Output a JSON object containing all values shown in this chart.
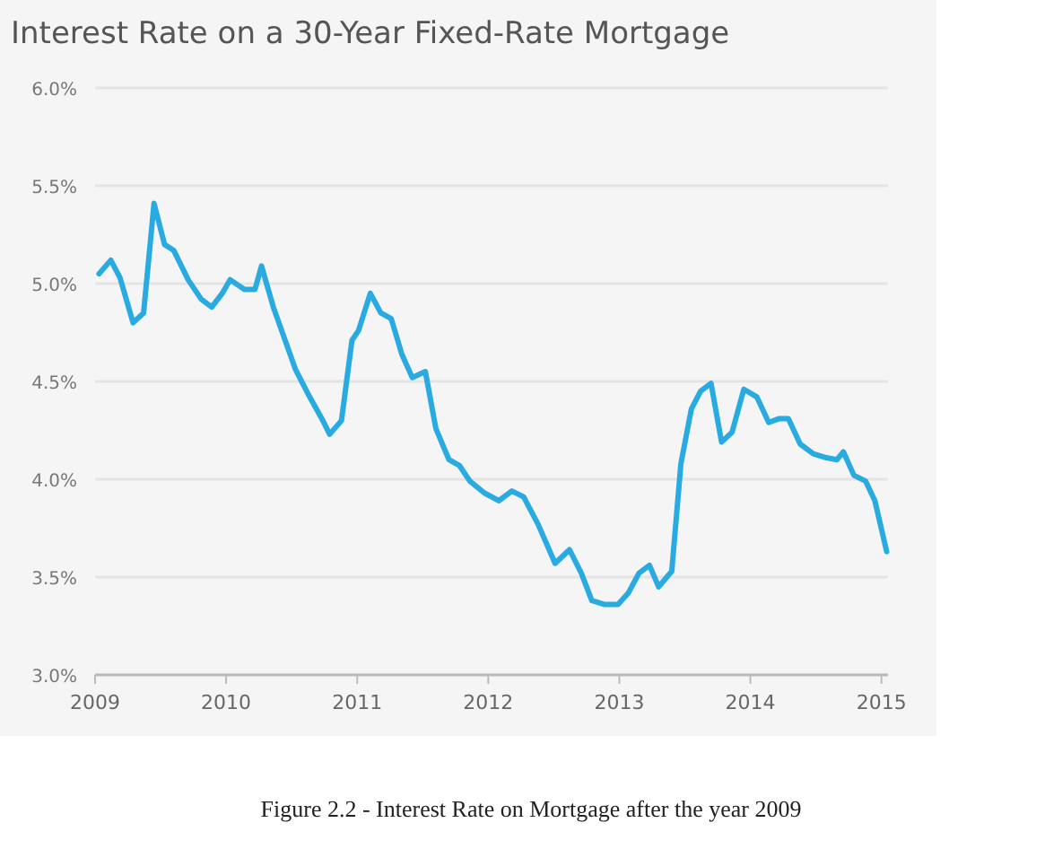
{
  "chart_data": {
    "type": "line",
    "title": "Interest Rate on a 30-Year Fixed-Rate Mortgage",
    "annotations": [
      "Figure 2.2 - Interest Rate on Mortgage after the year 2009"
    ],
    "x": [
      2009.03,
      2009.12,
      2009.19,
      2009.29,
      2009.37,
      2009.45,
      2009.53,
      2009.6,
      2009.71,
      2009.81,
      2009.89,
      2009.97,
      2010.03,
      2010.14,
      2010.22,
      2010.27,
      2010.36,
      2010.53,
      2010.63,
      2010.73,
      2010.79,
      2010.88,
      2010.96,
      2011.01,
      2011.1,
      2011.18,
      2011.26,
      2011.34,
      2011.42,
      2011.52,
      2011.6,
      2011.7,
      2011.78,
      2011.86,
      2011.97,
      2012.08,
      2012.18,
      2012.27,
      2012.38,
      2012.51,
      2012.62,
      2012.71,
      2012.79,
      2012.89,
      2012.99,
      2013.07,
      2013.15,
      2013.23,
      2013.3,
      2013.4,
      2013.47,
      2013.55,
      2013.62,
      2013.7,
      2013.78,
      2013.86,
      2013.95,
      2014.05,
      2014.14,
      2014.22,
      2014.29,
      2014.38,
      2014.48,
      2014.58,
      2014.66,
      2014.71,
      2014.79,
      2014.88,
      2014.95,
      2015.04
    ],
    "series": [
      {
        "color": "#29abe2",
        "values": [
          5.05,
          5.12,
          5.03,
          4.8,
          4.85,
          5.41,
          5.2,
          5.17,
          5.02,
          4.92,
          4.88,
          4.95,
          5.02,
          4.97,
          4.97,
          5.09,
          4.88,
          4.56,
          4.43,
          4.31,
          4.23,
          4.3,
          4.71,
          4.76,
          4.95,
          4.85,
          4.82,
          4.64,
          4.52,
          4.55,
          4.26,
          4.1,
          4.07,
          3.99,
          3.93,
          3.89,
          3.94,
          3.91,
          3.77,
          3.57,
          3.64,
          3.52,
          3.38,
          3.36,
          3.36,
          3.42,
          3.52,
          3.56,
          3.45,
          3.53,
          4.08,
          4.36,
          4.45,
          4.49,
          4.19,
          4.24,
          4.46,
          4.42,
          4.29,
          4.31,
          4.31,
          4.18,
          4.13,
          4.11,
          4.1,
          4.14,
          4.02,
          3.99,
          3.89,
          3.63
        ]
      }
    ],
    "xlim": [
      2009,
      2015.05
    ],
    "xticks": [
      2009,
      2010,
      2011,
      2012,
      2013,
      2014,
      2015
    ],
    "ylim": [
      3,
      6
    ],
    "yticks": [
      {
        "value": 3,
        "label": "3.0%"
      },
      {
        "value": 3.5,
        "label": "3.5%"
      },
      {
        "value": 4,
        "label": "4.0%"
      },
      {
        "value": 4.5,
        "label": "4.5%"
      },
      {
        "value": 5,
        "label": "5.0%"
      },
      {
        "value": 5.5,
        "label": "5.5%"
      },
      {
        "value": 6,
        "label": "6.0%"
      }
    ],
    "grid": "y",
    "marker": "none",
    "line_style": "solid"
  }
}
